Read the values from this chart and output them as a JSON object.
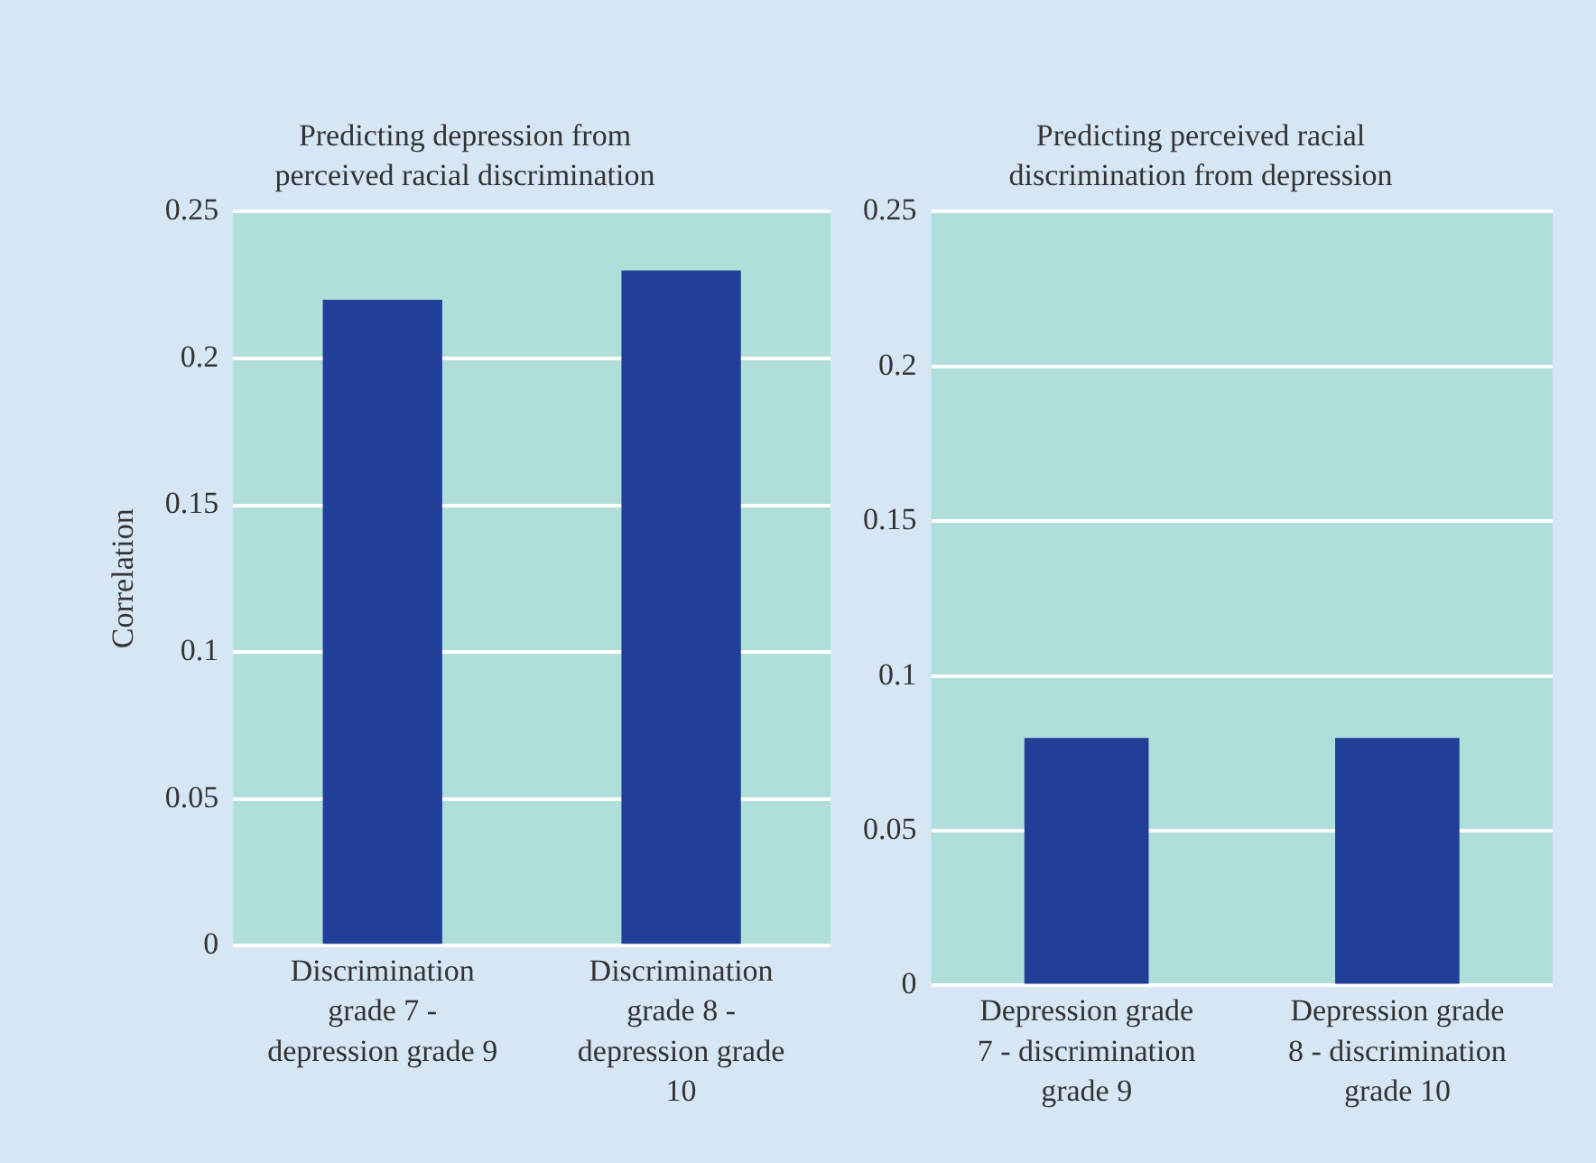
{
  "chart_data": [
    {
      "type": "bar",
      "title": "Predicting depression from perceived racial discrimination",
      "ylabel": "Correlation",
      "categories": [
        "Discrimination grade 7 - depression grade 9",
        "Discrimination grade 8 - depression grade 10"
      ],
      "values": [
        0.22,
        0.23
      ],
      "color": "#223f98",
      "ylim": [
        0,
        0.25
      ],
      "yticks": [
        0,
        0.05,
        0.1,
        0.15,
        0.2,
        0.25
      ],
      "grid": "y",
      "legend": false
    },
    {
      "type": "bar",
      "title": "Predicting perceived racial discrimination from depression",
      "categories": [
        "Depression grade 7 - discrimination grade 9",
        "Depression grade 8 - discrimination grade 10"
      ],
      "values": [
        0.08,
        0.08
      ],
      "color": "#223f98",
      "ylim": [
        0,
        0.25
      ],
      "yticks": [
        0,
        0.05,
        0.1,
        0.15,
        0.2,
        0.25
      ],
      "grid": "y",
      "legend": false
    }
  ]
}
